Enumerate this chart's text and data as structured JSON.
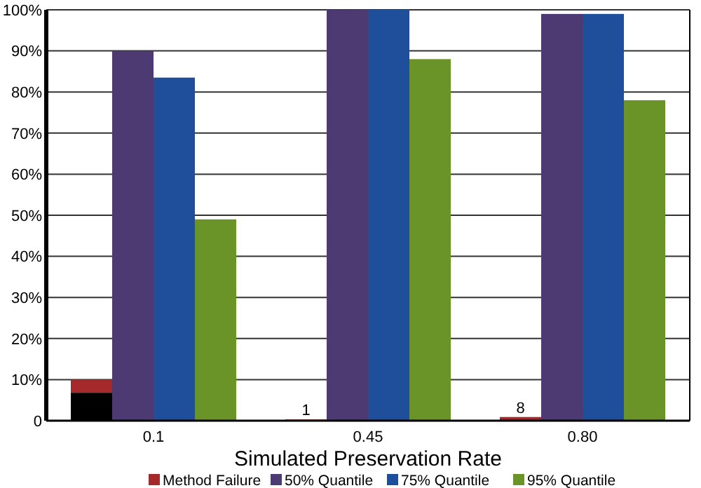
{
  "chart_data": {
    "type": "bar",
    "xlabel": "Simulated Preservation Rate",
    "categories": [
      "0.1",
      "0.45",
      "0.80"
    ],
    "series": [
      {
        "color": "#000000",
        "values": [
          6.8,
          null,
          null
        ]
      },
      {
        "name": "Method Failure",
        "color": "#a5282a",
        "base": [
          6.8,
          0,
          0
        ],
        "values": [
          3.2,
          0.3,
          0.9
        ]
      },
      {
        "name": "50% Quantile",
        "color": "#4d3a73",
        "values": [
          90,
          100,
          99
        ]
      },
      {
        "name": "75% Quantile",
        "color": "#1f4f9a",
        "values": [
          83.5,
          100,
          99
        ]
      },
      {
        "name": "95% Quantile",
        "color": "#6a9428",
        "values": [
          49,
          88,
          78
        ]
      }
    ],
    "ylim": [
      0,
      100
    ],
    "yticks": [
      {
        "value": 0,
        "label": "0"
      },
      {
        "value": 10,
        "label": "10%"
      },
      {
        "value": 20,
        "label": "20%"
      },
      {
        "value": 30,
        "label": "30%"
      },
      {
        "value": 40,
        "label": "40%"
      },
      {
        "value": 50,
        "label": "50%"
      },
      {
        "value": 60,
        "label": "60%"
      },
      {
        "value": 70,
        "label": "70%"
      },
      {
        "value": 80,
        "label": "80%"
      },
      {
        "value": 90,
        "label": "90%"
      },
      {
        "value": 100,
        "label": "100%"
      }
    ],
    "annotations": [
      "1",
      "8"
    ],
    "grid": "y",
    "legend": "bottom"
  }
}
